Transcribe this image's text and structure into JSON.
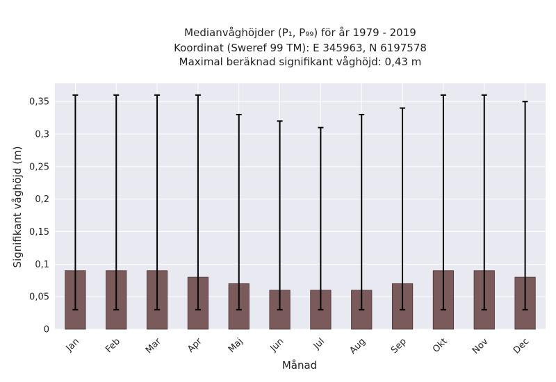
{
  "chart_data": {
    "type": "bar",
    "title_lines": [
      "Medianvåghöjder (P₁, P₉₉) för år 1979 - 2019",
      "Koordinat (Sweref 99 TM): E 345963, N 6197578",
      "Maximal beräknad signifikant våghöjd: 0,43 m"
    ],
    "xlabel": "Månad",
    "ylabel": "Signifikant våghöjd (m)",
    "categories": [
      "Jan",
      "Feb",
      "Mar",
      "Apr",
      "Maj",
      "Jun",
      "Jul",
      "Aug",
      "Sep",
      "Okt",
      "Nov",
      "Dec"
    ],
    "values": [
      0.09,
      0.09,
      0.09,
      0.08,
      0.07,
      0.06,
      0.06,
      0.06,
      0.07,
      0.09,
      0.09,
      0.08
    ],
    "error_low": [
      0.03,
      0.03,
      0.03,
      0.03,
      0.03,
      0.03,
      0.03,
      0.03,
      0.03,
      0.03,
      0.03,
      0.03
    ],
    "error_high": [
      0.36,
      0.36,
      0.36,
      0.36,
      0.33,
      0.32,
      0.31,
      0.33,
      0.34,
      0.36,
      0.36,
      0.35
    ],
    "ylim": [
      0,
      0.378
    ],
    "yticks": [
      0,
      0.05,
      0.1,
      0.15,
      0.2,
      0.25,
      0.3,
      0.35
    ],
    "ytick_labels": [
      "0",
      "0,05",
      "0,1",
      "0,15",
      "0,2",
      "0,25",
      "0,3",
      "0,35"
    ],
    "grid": true,
    "colors": {
      "bar": "#7a5a5a",
      "bar_edge": "#4a3434",
      "error": "#000000",
      "plot_bg": "#e9e9f1",
      "grid": "#ffffff"
    }
  }
}
